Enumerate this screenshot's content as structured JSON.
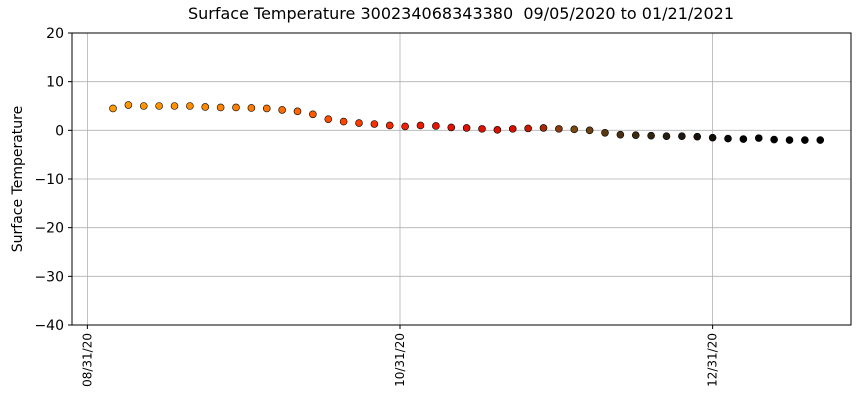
{
  "chart_data": {
    "type": "scatter",
    "title": "Surface Temperature 300234068343380  09/05/2020 to 01/21/2021",
    "ylabel": "Surface Temperature",
    "x": [
      "09/05/20",
      "09/08/20",
      "09/11/20",
      "09/14/20",
      "09/17/20",
      "09/20/20",
      "09/23/20",
      "09/26/20",
      "09/29/20",
      "10/02/20",
      "10/05/20",
      "10/08/20",
      "10/11/20",
      "10/14/20",
      "10/17/20",
      "10/20/20",
      "10/23/20",
      "10/26/20",
      "10/29/20",
      "11/01/20",
      "11/04/20",
      "11/07/20",
      "11/10/20",
      "11/13/20",
      "11/16/20",
      "11/19/20",
      "11/22/20",
      "11/25/20",
      "11/28/20",
      "12/01/20",
      "12/04/20",
      "12/07/20",
      "12/10/20",
      "12/13/20",
      "12/16/20",
      "12/19/20",
      "12/22/20",
      "12/25/20",
      "12/28/20",
      "12/31/20",
      "01/03/21",
      "01/06/21",
      "01/09/21",
      "01/12/21",
      "01/15/21",
      "01/18/21",
      "01/21/21"
    ],
    "values": [
      4.5,
      5.2,
      5.0,
      5.0,
      5.0,
      5.0,
      4.8,
      4.7,
      4.7,
      4.6,
      4.5,
      4.2,
      3.9,
      3.3,
      2.3,
      1.8,
      1.5,
      1.3,
      1.0,
      0.8,
      1.0,
      0.9,
      0.6,
      0.5,
      0.3,
      0.1,
      0.3,
      0.4,
      0.5,
      0.3,
      0.2,
      0.0,
      -0.5,
      -0.9,
      -1.0,
      -1.1,
      -1.2,
      -1.2,
      -1.3,
      -1.5,
      -1.7,
      -1.8,
      -1.6,
      -1.9,
      -2.0,
      -2.0,
      -2.0
    ],
    "colors": [
      "#ff9a00",
      "#ff9600",
      "#ff9400",
      "#ff9200",
      "#ff9000",
      "#ff8c00",
      "#ff8800",
      "#ff8400",
      "#ff8000",
      "#ff7a00",
      "#ff7400",
      "#ff6c00",
      "#ff6400",
      "#ff5a00",
      "#ff4e00",
      "#ff4400",
      "#ff3a00",
      "#f83000",
      "#f42800",
      "#f02000",
      "#ec1800",
      "#e81400",
      "#e41000",
      "#e01000",
      "#dc1000",
      "#d81000",
      "#d41000",
      "#c81800",
      "#a82800",
      "#8a3a10",
      "#7a4810",
      "#6a4010",
      "#5a3810",
      "#4a3010",
      "#3e2a10",
      "#342410",
      "#2a1e10",
      "#201810",
      "#181208",
      "#100c06",
      "#080604",
      "#000000",
      "#000000",
      "#000000",
      "#000000",
      "#000000",
      "#000000"
    ],
    "xlim": [
      "08/28/20",
      "01/27/21"
    ],
    "xticks": [
      "08/31/20",
      "10/31/20",
      "12/31/20"
    ],
    "ylim": [
      -40,
      20
    ],
    "yticks": [
      {
        "value": -40,
        "label": "−40"
      },
      {
        "value": -30,
        "label": "−30"
      },
      {
        "value": -20,
        "label": "−20"
      },
      {
        "value": -10,
        "label": "−10"
      },
      0,
      10,
      20
    ],
    "grid": true
  }
}
